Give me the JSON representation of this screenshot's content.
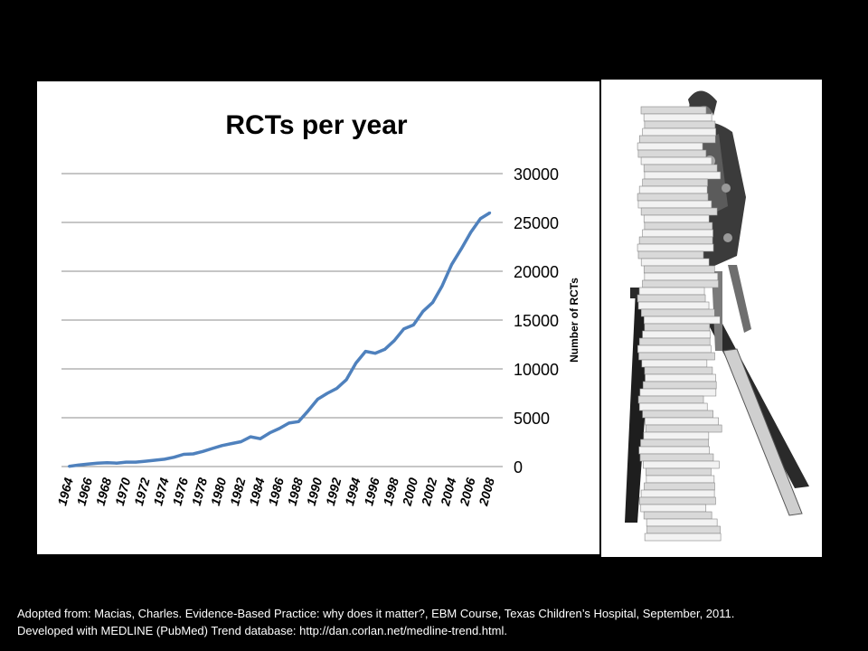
{
  "chart_data": {
    "type": "line",
    "title": "RCTs per year",
    "ylabel": "Number of RCTs",
    "xlabel": "",
    "ylim": [
      0,
      30000
    ],
    "yticks": [
      "0",
      "5000",
      "10000",
      "15000",
      "20000",
      "25000",
      "30000"
    ],
    "ytick_values": [
      0,
      5000,
      10000,
      15000,
      20000,
      25000,
      30000
    ],
    "xticks": [
      "1964",
      "1966",
      "1968",
      "1970",
      "1972",
      "1974",
      "1976",
      "1978",
      "1980",
      "1982",
      "1984",
      "1986",
      "1988",
      "1990",
      "1992",
      "1994",
      "1996",
      "1998",
      "2000",
      "2002",
      "2004",
      "2006",
      "2008"
    ],
    "grid": true,
    "line_color": "#4f81bd",
    "series": [
      {
        "x": [
          1964,
          1965,
          1966,
          1967,
          1968,
          1969,
          1970,
          1971,
          1972,
          1973,
          1974,
          1975,
          1976,
          1977,
          1978,
          1979,
          1980,
          1981,
          1982,
          1983,
          1984,
          1985,
          1986,
          1987,
          1988,
          1989,
          1990,
          1991,
          1992,
          1993,
          1994,
          1995,
          1996,
          1997,
          1998,
          1999,
          2000,
          2001,
          2002,
          2003,
          2004,
          2005,
          2006,
          2007,
          2008
        ],
        "values": [
          20,
          150,
          250,
          350,
          400,
          350,
          450,
          450,
          550,
          650,
          750,
          950,
          1250,
          1300,
          1550,
          1850,
          2150,
          2350,
          2550,
          3050,
          2850,
          3450,
          3900,
          4450,
          4600,
          5700,
          6900,
          7500,
          8000,
          8900,
          10600,
          11800,
          11600,
          12000,
          12900,
          14100,
          14500,
          15900,
          16800,
          18500,
          20700,
          22300,
          24000,
          25400,
          26000
        ]
      }
    ]
  },
  "photo": {
    "subject": "woman-on-ladder-with-paper-stack"
  },
  "caption": {
    "line1": "Adopted from: Macias, Charles. Evidence-Based Practice: why does it matter?, EBM Course, Texas Children’s Hospital, September, 2011.",
    "line2": "Developed with MEDLINE (PubMed) Trend database: http://dan.corlan.net/medline-trend.html."
  },
  "colors": {
    "background": "#000000",
    "panel": "#ffffff",
    "line": "#4f81bd",
    "grid": "#8c8c8c",
    "text": "#000000"
  }
}
